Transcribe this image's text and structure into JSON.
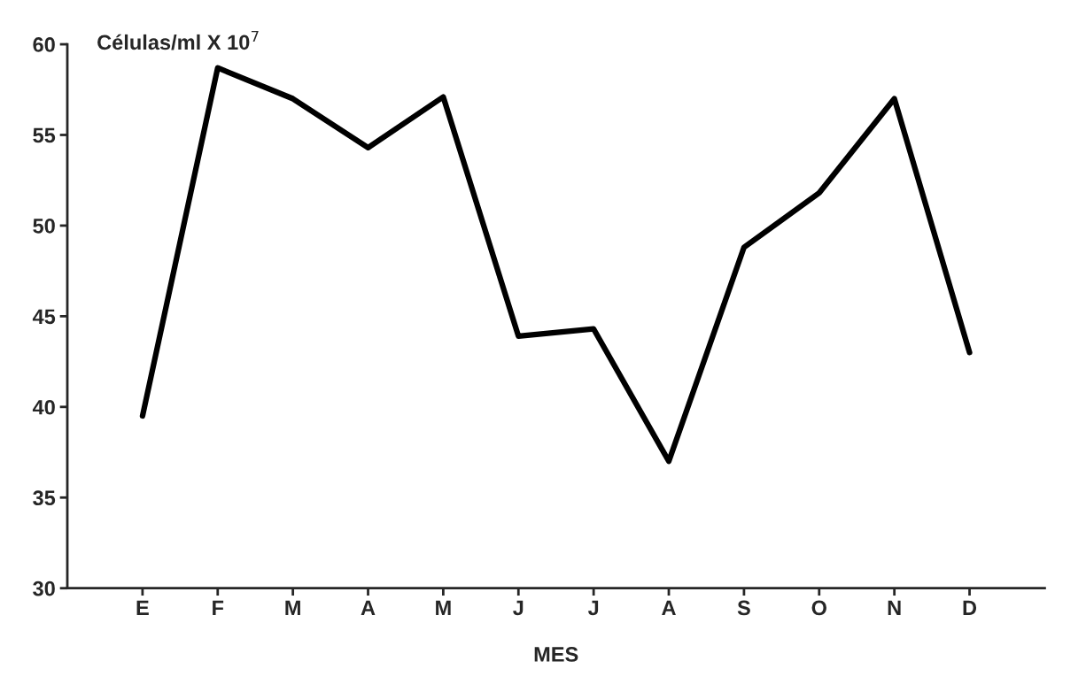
{
  "chart_data": {
    "type": "line",
    "ylabel": "Células/ml X 10$^{7}$",
    "xlabel": "MES",
    "categories": [
      "E",
      "F",
      "M",
      "A",
      "M",
      "J",
      "J",
      "A",
      "S",
      "O",
      "N",
      "D"
    ],
    "series": [
      {
        "color": "#000000",
        "values": [
          39.5,
          58.7,
          57.0,
          54.3,
          57.1,
          43.9,
          44.3,
          37.0,
          48.8,
          51.8,
          57.0,
          43.0
        ]
      }
    ],
    "ylim": [
      30,
      60
    ],
    "yticks": [
      30,
      35,
      40,
      45,
      50,
      55,
      60
    ],
    "grid": false,
    "legend": false,
    "marker": "none",
    "line_style": "solid"
  }
}
